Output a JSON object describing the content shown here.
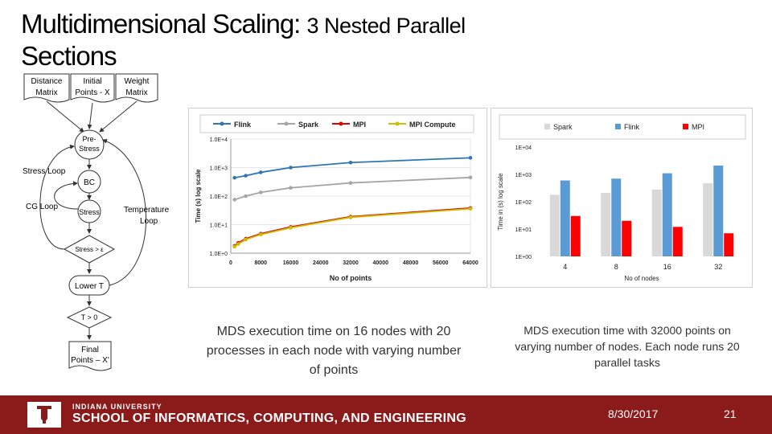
{
  "title": {
    "main": "Multidimensional Scaling:",
    "rest": "3 Nested Parallel",
    "line2": "Sections"
  },
  "flowchart": {
    "inputs": [
      {
        "line1": "Distance",
        "line2": "Matrix"
      },
      {
        "line1": "Initial",
        "line2": "Points - X"
      },
      {
        "line1": "Weight",
        "line2": "Matrix"
      }
    ],
    "nodes": {
      "pre_stress_1": "Pre-",
      "pre_stress_2": "Stress",
      "bc": "BC",
      "stress": "Stress",
      "stress_check": "Stress > ε",
      "lower_t": "Lower T",
      "t_check": "T > 0",
      "final_1": "Final",
      "final_2": "Points – X'"
    },
    "loops": {
      "stress_loop": "Stress Loop",
      "cg_loop": "CG Loop",
      "temp_1": "Temperature",
      "temp_2": "Loop"
    }
  },
  "chart_data": [
    {
      "type": "line",
      "title": "",
      "legend": [
        "Flink",
        "Spark",
        "MPI",
        "MPI Compute"
      ],
      "legend_position": "top",
      "xlabel": "No of points",
      "ylabel": "Time (s) log scale",
      "x_ticks": [
        "0",
        "8000",
        "16000",
        "24000",
        "32000",
        "40000",
        "48000",
        "56000",
        "64000"
      ],
      "y_ticks": [
        "1.0E+0",
        "1.0E+1",
        "1.0E+2",
        "1.0E+3",
        "1.0E+4"
      ],
      "ylim": [
        1,
        10000
      ],
      "xlim": [
        0,
        64000
      ],
      "series": [
        {
          "name": "Flink",
          "color": "#2e75b6",
          "x": [
            1000,
            4000,
            8000,
            16000,
            32000,
            64000
          ],
          "y": [
            440,
            520,
            680,
            1000,
            1500,
            2200
          ]
        },
        {
          "name": "Spark",
          "color": "#a5a5a5",
          "x": [
            1000,
            4000,
            8000,
            16000,
            32000,
            64000
          ],
          "y": [
            75,
            100,
            135,
            195,
            290,
            450
          ]
        },
        {
          "name": "MPI",
          "color": "#e00000",
          "x": [
            1000,
            2000,
            4000,
            8000,
            16000,
            32000,
            64000
          ],
          "y": [
            1.8,
            2.3,
            3.2,
            4.8,
            8.3,
            19,
            38
          ]
        },
        {
          "name": "MPI Compute",
          "color": "#c9c000",
          "x": [
            1000,
            2000,
            4000,
            8000,
            16000,
            32000,
            64000
          ],
          "y": [
            1.7,
            2.1,
            3,
            4.5,
            7.8,
            18,
            36
          ]
        }
      ]
    },
    {
      "type": "bar",
      "title": "",
      "legend": [
        "Spark",
        "Flink",
        "MPI"
      ],
      "legend_position": "top",
      "xlabel": "No of nodes",
      "ylabel": "Time in (s) log scale",
      "categories": [
        "4",
        "8",
        "16",
        "32"
      ],
      "y_ticks": [
        "1E+00",
        "1E+01",
        "1E+02",
        "1E+03",
        "1E+04"
      ],
      "ylim": [
        1,
        10000
      ],
      "series": [
        {
          "name": "Spark",
          "color": "#d9d9d9",
          "values": [
            180,
            210,
            280,
            480
          ]
        },
        {
          "name": "Flink",
          "color": "#5b9bd5",
          "values": [
            600,
            700,
            1100,
            2100
          ]
        },
        {
          "name": "MPI",
          "color": "#ff0000",
          "values": [
            30,
            20,
            12,
            7
          ]
        }
      ]
    }
  ],
  "captions": {
    "left": "MDS execution time on 16 nodes with 20 processes in each node with varying number of points",
    "right": "MDS execution time with 32000 points on varying number of nodes. Each node runs 20 parallel tasks"
  },
  "footer": {
    "university": "INDIANA UNIVERSITY",
    "school": "SCHOOL OF INFORMATICS, COMPUTING, AND ENGINEERING",
    "date": "8/30/2017",
    "page": "21"
  }
}
